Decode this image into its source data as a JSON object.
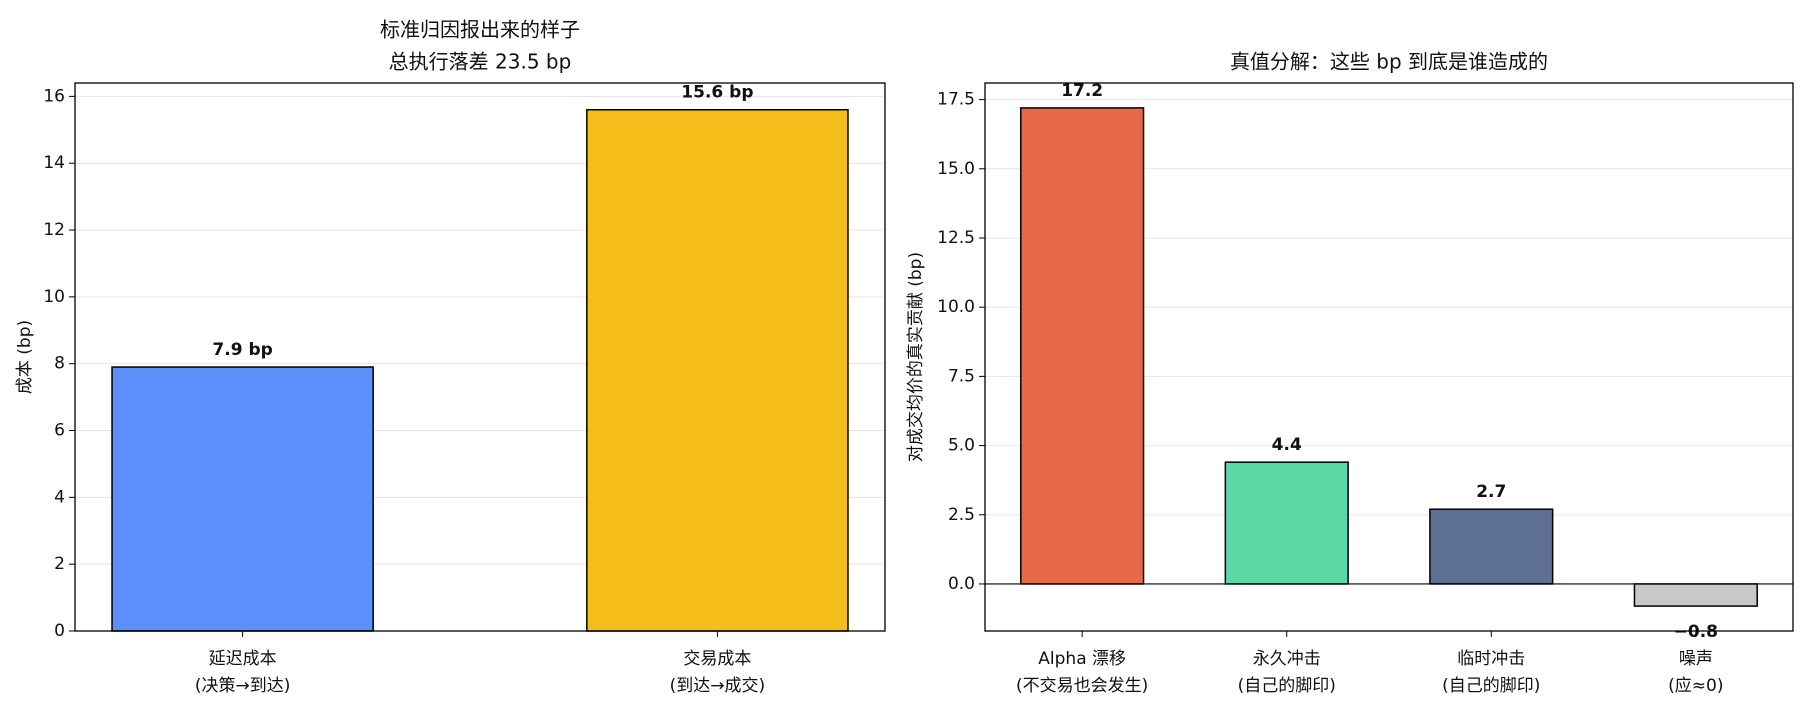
{
  "chart_data": [
    {
      "type": "bar",
      "title": "标准归因报出来的样子",
      "subtitle": "总执行落差 23.5 bp",
      "ylabel": "成本 (bp)",
      "categories": [
        [
          "延迟成本",
          "(决策→到达)"
        ],
        [
          "交易成本",
          "(到达→成交)"
        ]
      ],
      "series": [
        {
          "values": [
            7.9,
            15.6
          ],
          "value_labels": [
            "7.9 bp",
            "15.6 bp"
          ],
          "colors": [
            "#5b8ff9",
            "#f4bd19"
          ]
        }
      ],
      "ylim": [
        0,
        16.4
      ],
      "yticks": [
        0,
        2,
        4,
        6,
        8,
        10,
        12,
        14,
        16
      ],
      "grid": true
    },
    {
      "type": "bar",
      "title": "真值分解：这些 bp 到底是谁造成的",
      "ylabel": "对成交均价的真实贡献 (bp)",
      "categories": [
        [
          "Alpha 漂移",
          "(不交易也会发生)"
        ],
        [
          "永久冲击",
          "(自己的脚印)"
        ],
        [
          "临时冲击",
          "(自己的脚印)"
        ],
        [
          "噪声",
          "(应≈0)"
        ]
      ],
      "series": [
        {
          "values": [
            17.2,
            4.4,
            2.7,
            -0.8
          ],
          "value_labels": [
            "17.2",
            "4.4",
            "2.7",
            "−0.8"
          ],
          "colors": [
            "#e8694a",
            "#5ad8a6",
            "#5d7092",
            "#c8c8c8"
          ]
        }
      ],
      "ylim": [
        -1.7,
        18.1
      ],
      "yticks": [
        {
          "value": 0,
          "label": "0.0"
        },
        2.5,
        {
          "value": 5,
          "label": "5.0"
        },
        7.5,
        {
          "value": 10,
          "label": "10.0"
        },
        12.5,
        {
          "value": 15,
          "label": "15.0"
        },
        17.5
      ],
      "grid": true,
      "zero_line": true
    }
  ]
}
